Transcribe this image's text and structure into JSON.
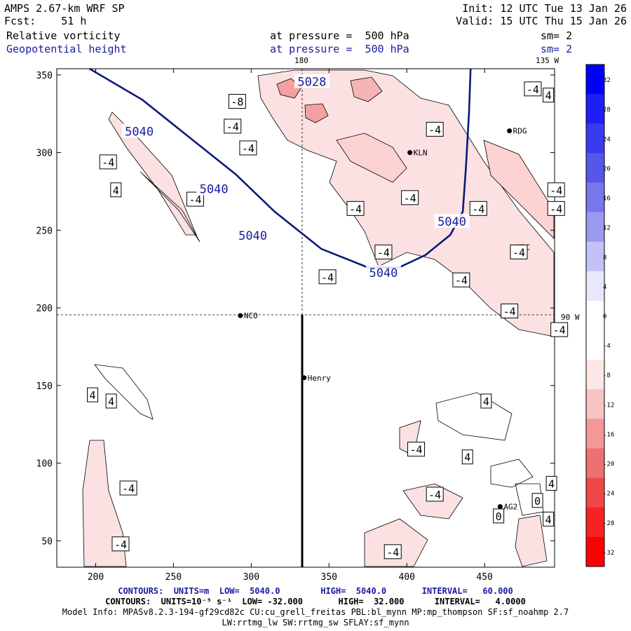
{
  "header": {
    "title": "AMPS 2.67-km WRF SP",
    "fcst_label": "Fcst:",
    "fcst_hours": "51 h",
    "init": "Init: 12 UTC Tue 13 Jan 26",
    "valid": "Valid: 15 UTC Thu 15 Jan 26",
    "field1": "Relative vorticity",
    "field2": "Geopotential height",
    "pressure1": "at pressure =  500 hPa",
    "pressure2": "at pressure =  500 hPa",
    "sm1": "sm= 2",
    "sm2": "sm= 2"
  },
  "map_labels": {
    "lon180": "180",
    "lon135": "135 W",
    "lon90": "90 W"
  },
  "stations": [
    {
      "name": "NCO",
      "x": 293,
      "y": 195
    },
    {
      "name": "Henry",
      "x": 334,
      "y": 155
    },
    {
      "name": "RDG",
      "x": 466,
      "y": 314
    },
    {
      "name": "KLN",
      "x": 402,
      "y": 300
    },
    {
      "name": "HRC",
      "x": 468,
      "y": 239
    },
    {
      "name": "AG2",
      "x": 460,
      "y": 72
    }
  ],
  "chart_data": {
    "type": "contour",
    "xlim": [
      175,
      495
    ],
    "ylim": [
      33,
      354
    ],
    "xticks": [
      200,
      250,
      300,
      350,
      400,
      450
    ],
    "yticks": [
      50,
      100,
      150,
      200,
      250,
      300,
      350
    ],
    "height_contours": [
      {
        "value": 5040,
        "points": [
          [
            196,
            354
          ],
          [
            230,
            334
          ],
          [
            260,
            310
          ],
          [
            290,
            286
          ],
          [
            315,
            262
          ],
          [
            345,
            238
          ],
          [
            375,
            226
          ],
          [
            395,
            226
          ],
          [
            412,
            234
          ],
          [
            428,
            247
          ],
          [
            436,
            262
          ],
          [
            438,
            290
          ],
          [
            440,
            326
          ],
          [
            441,
            354
          ]
        ]
      }
    ],
    "height_labels": [
      {
        "text": "5040",
        "x": 228,
        "y": 314
      },
      {
        "text": "5040",
        "x": 276,
        "y": 277
      },
      {
        "text": "5040",
        "x": 301,
        "y": 247
      },
      {
        "text": "5040",
        "x": 429,
        "y": 256
      },
      {
        "text": "5040",
        "x": 385,
        "y": 223
      },
      {
        "text": "5028",
        "x": 339,
        "y": 346
      }
    ],
    "vorticity_labels": [
      {
        "text": "-4",
        "x": 208,
        "y": 294
      },
      {
        "text": "4",
        "x": 213,
        "y": 276
      },
      {
        "text": "-4",
        "x": 264,
        "y": 270
      },
      {
        "text": "-4",
        "x": 288,
        "y": 317
      },
      {
        "text": "-4",
        "x": 298,
        "y": 303
      },
      {
        "text": "-8",
        "x": 291,
        "y": 333
      },
      {
        "text": "-4",
        "x": 367,
        "y": 264
      },
      {
        "text": "-4",
        "x": 402,
        "y": 271
      },
      {
        "text": "-4",
        "x": 418,
        "y": 315
      },
      {
        "text": "-4",
        "x": 385,
        "y": 236
      },
      {
        "text": "-4",
        "x": 349,
        "y": 220
      },
      {
        "text": "-4",
        "x": 446,
        "y": 264
      },
      {
        "text": "-4",
        "x": 481,
        "y": 341
      },
      {
        "text": "4",
        "x": 491,
        "y": 337
      },
      {
        "text": "-4",
        "x": 496,
        "y": 276
      },
      {
        "text": "-4",
        "x": 496,
        "y": 264
      },
      {
        "text": "-4",
        "x": 472,
        "y": 236
      },
      {
        "text": "-4",
        "x": 435,
        "y": 218
      },
      {
        "text": "-4",
        "x": 466,
        "y": 198
      },
      {
        "text": "-4",
        "x": 498,
        "y": 186
      },
      {
        "text": "4",
        "x": 198,
        "y": 144
      },
      {
        "text": "4",
        "x": 210,
        "y": 140
      },
      {
        "text": "4",
        "x": 451,
        "y": 140
      },
      {
        "text": "-4",
        "x": 406,
        "y": 109
      },
      {
        "text": "4",
        "x": 439,
        "y": 104
      },
      {
        "text": "4",
        "x": 493,
        "y": 87
      },
      {
        "text": "-4",
        "x": 418,
        "y": 80
      },
      {
        "text": "4",
        "x": 491,
        "y": 64
      },
      {
        "text": "-4",
        "x": 391,
        "y": 43
      },
      {
        "text": "-4",
        "x": 221,
        "y": 84
      },
      {
        "text": "-4",
        "x": 216,
        "y": 48
      },
      {
        "text": "0",
        "x": 459,
        "y": 66
      },
      {
        "text": "0",
        "x": 484,
        "y": 76
      }
    ],
    "colorbar": {
      "unit": "10⁻⁵ s⁻¹",
      "ticks": [
        32,
        28,
        24,
        20,
        16,
        12,
        8,
        4,
        0,
        -4,
        -8,
        -12,
        -16,
        -20,
        -24,
        -28,
        -32
      ],
      "colors": [
        "#0000ff",
        "#1e1ef7",
        "#3a3aee",
        "#5656ea",
        "#7878ec",
        "#9a9af0",
        "#c2c2f6",
        "#e8e8fc",
        "#ffffff",
        "#ffffff",
        "#fce6e6",
        "#f8c4c4",
        "#f29898",
        "#ee7070",
        "#f04848",
        "#f82222",
        "#ff0000"
      ]
    }
  },
  "footer": {
    "line1_a": "CONTOURS:  UNITS=m  LOW=  5040.0        HIGH=  5040.0       INTERVAL=   60.000",
    "line2_a": "CONTOURS:  UNITS=10⁻⁵ s⁻¹  LOW= -32.000       HIGH=  32.000      INTERVAL=   4.0000",
    "line3": "Model Info: MPASv8.2.3-194-gf29cd82c CU:cu_grell_freitas PBL:bl_mynn MP:mp_thompson SF:sf_noahmp 2.7",
    "line4": "LW:rrtmg_lw SW:rrtmg_sw SFLAY:sf_mynn"
  }
}
